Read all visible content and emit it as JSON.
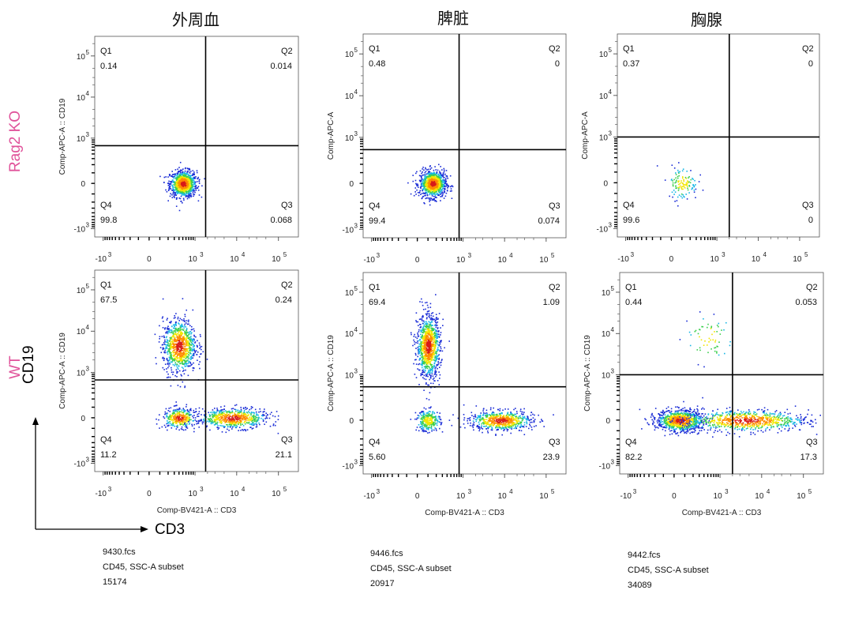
{
  "figure": {
    "column_titles": [
      "外周血",
      "脾脏",
      "胸腺"
    ],
    "row_labels": [
      "Rag2 KO",
      "WT"
    ],
    "axis_key": {
      "y": "CD19",
      "x": "CD3"
    },
    "colors": {
      "row_label": "#e0529a",
      "gate": "#000000"
    }
  },
  "chart_data": [
    {
      "type": "scatter",
      "name": "外周血 Rag2 KO",
      "ylabel": "Comp-APC-A :: CD19",
      "xlabel": "",
      "x_ticks": [
        "-10",
        "0",
        "10",
        "10",
        "10"
      ],
      "x_tick_exps": [
        "3",
        "",
        "3",
        "4",
        "5"
      ],
      "y_ticks": [
        "10",
        "10",
        "10",
        "0",
        "-10"
      ],
      "y_tick_exps": [
        "5",
        "4",
        "3",
        "",
        "3"
      ],
      "quadrants": {
        "Q1": "0.14",
        "Q2": "0.014",
        "Q3": "0.068",
        "Q4": "99.8"
      },
      "gate": {
        "cd3": 1800,
        "cd19": 650
      },
      "populations": [
        {
          "cd3": 500,
          "cd19": 0,
          "n": 900,
          "sx": 0.16,
          "sy": 0.16,
          "peak": 1
        }
      ]
    },
    {
      "type": "scatter",
      "name": "脾脏 Rag2 KO",
      "ylabel": "Comp-APC-A",
      "xlabel": "",
      "x_ticks": [
        "-10",
        "0",
        "10",
        "10",
        "10"
      ],
      "x_tick_exps": [
        "3",
        "",
        "3",
        "4",
        "5"
      ],
      "y_ticks": [
        "10",
        "10",
        "10",
        "0",
        "-10"
      ],
      "y_tick_exps": [
        "5",
        "4",
        "3",
        "",
        "3"
      ],
      "quadrants": {
        "Q1": "0.48",
        "Q2": "0",
        "Q3": "0.074",
        "Q4": "99.4"
      },
      "gate": {
        "cd3": 800,
        "cd19": 500
      },
      "populations": [
        {
          "cd3": 150,
          "cd19": 0,
          "n": 900,
          "sx": 0.16,
          "sy": 0.16,
          "peak": 1
        }
      ]
    },
    {
      "type": "scatter",
      "name": "胸腺 Rag2 KO",
      "ylabel": "Comp-APC-A",
      "xlabel": "",
      "x_ticks": [
        "-10",
        "0",
        "10",
        "10",
        "10"
      ],
      "x_tick_exps": [
        "3",
        "",
        "3",
        "4",
        "5"
      ],
      "y_ticks": [
        "10",
        "10",
        "10",
        "0",
        "-10"
      ],
      "y_tick_exps": [
        "5",
        "4",
        "3",
        "",
        "3"
      ],
      "quadrants": {
        "Q1": "0.37",
        "Q2": "0",
        "Q3": "0",
        "Q4": "99.6"
      },
      "gate": {
        "cd3": 2000,
        "cd19": 1000
      },
      "populations": [
        {
          "cd3": 100,
          "cd19": 0,
          "n": 120,
          "sx": 0.18,
          "sy": 0.2,
          "peak": 0
        }
      ]
    },
    {
      "type": "scatter",
      "name": "外周血 WT",
      "ylabel": "Comp-APC-A :: CD19",
      "xlabel": "Comp-BV421-A :: CD3",
      "x_ticks": [
        "-10",
        "0",
        "10",
        "10",
        "10"
      ],
      "x_tick_exps": [
        "3",
        "",
        "3",
        "4",
        "5"
      ],
      "y_ticks": [
        "10",
        "10",
        "10",
        "0",
        "-10"
      ],
      "y_tick_exps": [
        "5",
        "4",
        "3",
        "",
        "3"
      ],
      "quadrants": {
        "Q1": "67.5",
        "Q2": "0.24",
        "Q3": "21.1",
        "Q4": "11.2"
      },
      "gate": {
        "cd3": 1800,
        "cd19": 650
      },
      "populations": [
        {
          "cd3": 400,
          "cd19": 4500,
          "n": 900,
          "sx": 0.2,
          "sy": 0.32,
          "peak": 1
        },
        {
          "cd3": 400,
          "cd19": 0,
          "n": 350,
          "sx": 0.2,
          "sy": 0.12,
          "peak": 1
        },
        {
          "cd3": 8000,
          "cd19": 0,
          "n": 650,
          "sx": 0.42,
          "sy": 0.12,
          "peak": 1
        }
      ]
    },
    {
      "type": "scatter",
      "name": "脾脏 WT",
      "ylabel": "Comp-APC-A :: CD19",
      "xlabel": "Comp-BV421-A :: CD3",
      "x_ticks": [
        "-10",
        "0",
        "10",
        "10",
        "10"
      ],
      "x_tick_exps": [
        "3",
        "",
        "3",
        "4",
        "5"
      ],
      "y_ticks": [
        "10",
        "10",
        "10",
        "0",
        "-10"
      ],
      "y_tick_exps": [
        "5",
        "4",
        "3",
        "",
        "3"
      ],
      "quadrants": {
        "Q1": "69.4",
        "Q2": "1.09",
        "Q3": "23.9",
        "Q4": "5.60"
      },
      "gate": {
        "cd3": 800,
        "cd19": 500
      },
      "populations": [
        {
          "cd3": 100,
          "cd19": 5000,
          "n": 1000,
          "sx": 0.14,
          "sy": 0.38,
          "peak": 1
        },
        {
          "cd3": 100,
          "cd19": 0,
          "n": 280,
          "sx": 0.14,
          "sy": 0.13,
          "peak": 0
        },
        {
          "cd3": 8000,
          "cd19": 0,
          "n": 650,
          "sx": 0.38,
          "sy": 0.12,
          "peak": 1
        }
      ]
    },
    {
      "type": "scatter",
      "name": "胸腺 WT",
      "ylabel": "Comp-APC-A :: CD19",
      "xlabel": "Comp-BV421-A :: CD3",
      "x_ticks": [
        "-10",
        "0",
        "10",
        "10",
        "10"
      ],
      "x_tick_exps": [
        "3",
        "",
        "3",
        "4",
        "5"
      ],
      "y_ticks": [
        "10",
        "10",
        "10",
        "0",
        "-10"
      ],
      "y_tick_exps": [
        "5",
        "4",
        "3",
        "",
        "3"
      ],
      "quadrants": {
        "Q1": "0.44",
        "Q2": "0.053",
        "Q3": "17.3",
        "Q4": "82.2"
      },
      "gate": {
        "cd3": 2000,
        "cd19": 1000
      },
      "populations": [
        {
          "cd3": 50,
          "cd19": 0,
          "n": 900,
          "sx": 0.28,
          "sy": 0.13,
          "peak": 1
        },
        {
          "cd3": 4000,
          "cd19": 0,
          "n": 800,
          "sx": 0.75,
          "sy": 0.13,
          "peak": 1
        },
        {
          "cd3": 500,
          "cd19": 8000,
          "n": 60,
          "sx": 0.3,
          "sy": 0.3,
          "peak": 0
        }
      ]
    }
  ],
  "footers": [
    {
      "file": "9430.fcs",
      "subset": "CD45, SSC-A subset",
      "count": "15174"
    },
    {
      "file": "9446.fcs",
      "subset": "CD45, SSC-A subset",
      "count": "20917"
    },
    {
      "file": "9442.fcs",
      "subset": "CD45, SSC-A subset",
      "count": "34089"
    }
  ]
}
